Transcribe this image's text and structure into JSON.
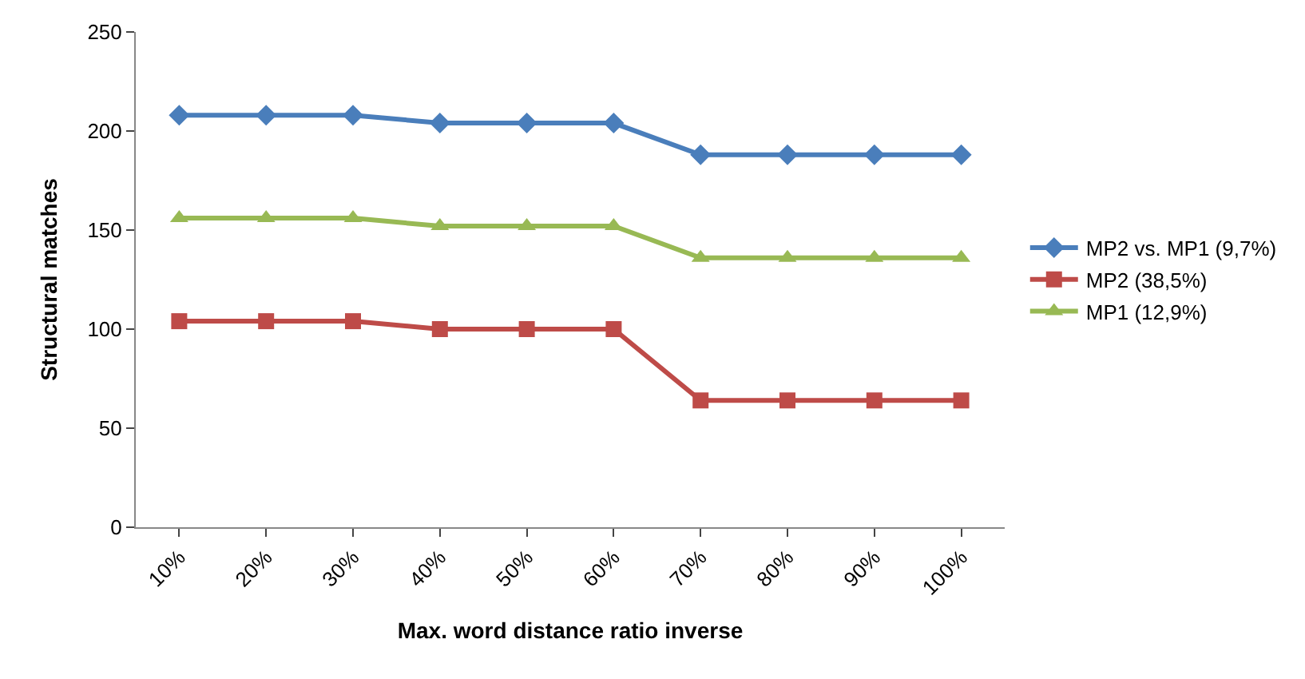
{
  "chart_data": {
    "type": "line",
    "xlabel": "Max. word distance ratio inverse",
    "ylabel": "Structural matches",
    "categories": [
      "10%",
      "20%",
      "30%",
      "40%",
      "50%",
      "60%",
      "70%",
      "80%",
      "90%",
      "100%"
    ],
    "series": [
      {
        "name": "MP2 vs. MP1 (9,7%)",
        "color": "#4a7ebb",
        "marker": "diamond",
        "values": [
          208,
          208,
          208,
          204,
          204,
          204,
          188,
          188,
          188,
          188
        ]
      },
      {
        "name": "MP2 (38,5%)",
        "color": "#be4b48",
        "marker": "square",
        "values": [
          104,
          104,
          104,
          100,
          100,
          100,
          64,
          64,
          64,
          64
        ]
      },
      {
        "name": "MP1 (12,9%)",
        "color": "#98b954",
        "marker": "triangle",
        "values": [
          156,
          156,
          156,
          152,
          152,
          152,
          136,
          136,
          136,
          136
        ]
      }
    ],
    "ylim": [
      0,
      250
    ],
    "yticks": [
      0,
      50,
      100,
      150,
      200,
      250
    ],
    "grid": false,
    "legend": "right",
    "line_style": "solid"
  }
}
